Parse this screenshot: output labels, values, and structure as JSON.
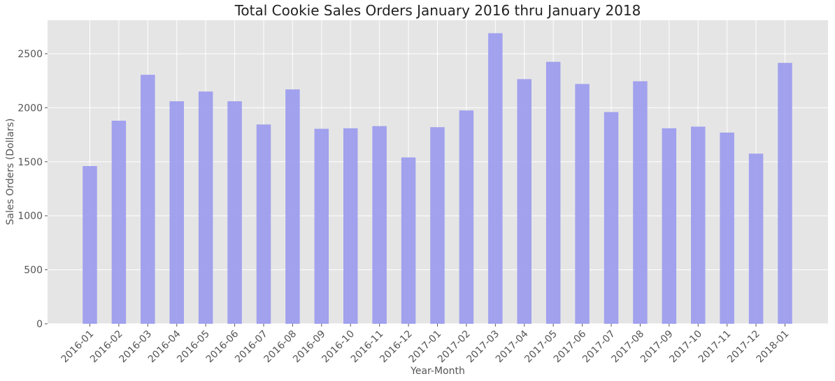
{
  "chart_data": {
    "type": "bar",
    "title": "Total Cookie Sales Orders January 2016 thru January 2018",
    "xlabel": "Year-Month",
    "ylabel": "Sales Orders (Dollars)",
    "categories": [
      "2016-01",
      "2016-02",
      "2016-03",
      "2016-04",
      "2016-05",
      "2016-06",
      "2016-07",
      "2016-08",
      "2016-09",
      "2016-10",
      "2016-11",
      "2016-12",
      "2017-01",
      "2017-02",
      "2017-03",
      "2017-04",
      "2017-05",
      "2017-06",
      "2017-07",
      "2017-08",
      "2017-09",
      "2017-10",
      "2017-11",
      "2017-12",
      "2018-01"
    ],
    "values": [
      1460,
      1880,
      2305,
      2060,
      2150,
      2060,
      1845,
      2170,
      1805,
      1810,
      1830,
      1540,
      1820,
      1975,
      2690,
      2265,
      2425,
      2220,
      1960,
      2245,
      1810,
      1825,
      1770,
      1575,
      2415
    ],
    "yticks": [
      0,
      500,
      1000,
      1500,
      2000,
      2500
    ],
    "ylim": [
      0,
      2810
    ],
    "grid": true,
    "bar_color": "#9999ee",
    "background_color": "#e5e5e5"
  }
}
